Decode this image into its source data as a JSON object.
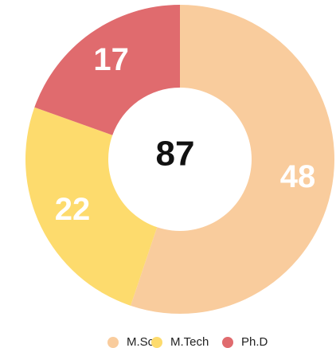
{
  "chart_data": {
    "type": "donut",
    "categories": [
      "M.Sc",
      "M.Tech",
      "Ph.D"
    ],
    "values": [
      48,
      22,
      17
    ],
    "colors": [
      "#f9cc9d",
      "#fddb6d",
      "#e06b6e"
    ],
    "center_label": 87,
    "legend": "bottom"
  }
}
